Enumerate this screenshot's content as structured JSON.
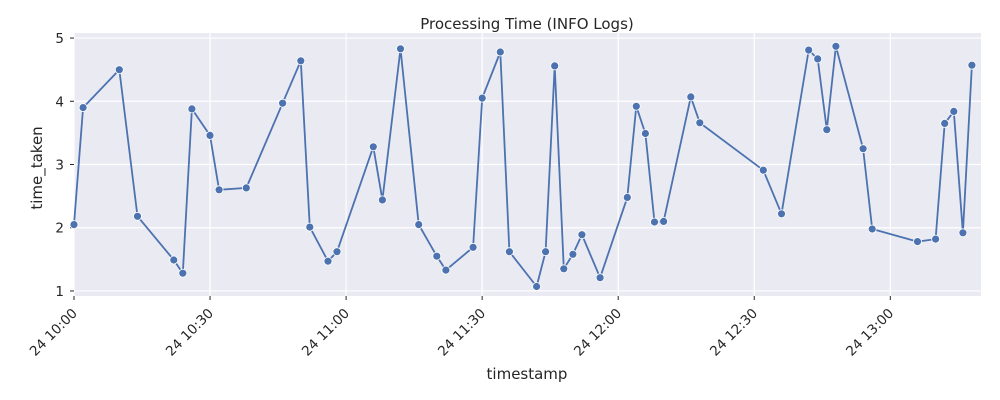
{
  "chart_data": {
    "type": "line",
    "title": "Processing Time (INFO Logs)",
    "xlabel": "timestamp",
    "ylabel": "time_taken",
    "x_axis_type": "time",
    "xlim": [
      "10:00",
      "13:20"
    ],
    "ylim": [
      0.92,
      5.08
    ],
    "x_ticks": [
      "10:00",
      "10:30",
      "11:00",
      "11:30",
      "12:00",
      "12:30",
      "13:00"
    ],
    "x_tick_labels": [
      "24 10:00",
      "24 10:30",
      "24 11:00",
      "24 11:30",
      "24 12:00",
      "24 12:30",
      "24 13:00"
    ],
    "y_ticks": [
      1,
      2,
      3,
      4,
      5
    ],
    "grid": true,
    "background": "#eaeaf2",
    "color": "#4c72b0",
    "series": [
      {
        "x": [
          "10:00",
          "10:02",
          "10:10",
          "10:14",
          "10:22",
          "10:24",
          "10:26",
          "10:30",
          "10:32",
          "10:38",
          "10:46",
          "10:50",
          "10:52",
          "10:56",
          "10:58",
          "11:06",
          "11:08",
          "11:12",
          "11:16",
          "11:20",
          "11:22",
          "11:28",
          "11:30",
          "11:34",
          "11:36",
          "11:42",
          "11:44",
          "11:46",
          "11:48",
          "11:50",
          "11:52",
          "11:56",
          "12:02",
          "12:04",
          "12:06",
          "12:08",
          "12:10",
          "12:16",
          "12:18",
          "12:32",
          "12:36",
          "12:42",
          "12:44",
          "12:46",
          "12:48",
          "12:54",
          "12:56",
          "13:06",
          "13:10",
          "13:12",
          "13:14",
          "13:16",
          "13:18"
        ],
        "values": [
          2.05,
          3.9,
          4.5,
          2.18,
          1.49,
          1.28,
          3.88,
          3.46,
          2.6,
          2.63,
          3.97,
          4.64,
          2.01,
          1.47,
          1.62,
          3.28,
          2.44,
          4.83,
          2.05,
          1.55,
          1.33,
          1.69,
          4.05,
          4.78,
          1.62,
          1.07,
          1.62,
          4.56,
          1.35,
          1.58,
          1.89,
          1.21,
          2.48,
          3.92,
          3.49,
          2.09,
          2.1,
          4.07,
          3.66,
          2.91,
          2.22,
          4.81,
          4.67,
          3.55,
          4.87,
          3.25,
          1.98,
          1.78,
          1.82,
          3.65,
          3.84,
          1.92,
          4.57
        ]
      }
    ]
  }
}
